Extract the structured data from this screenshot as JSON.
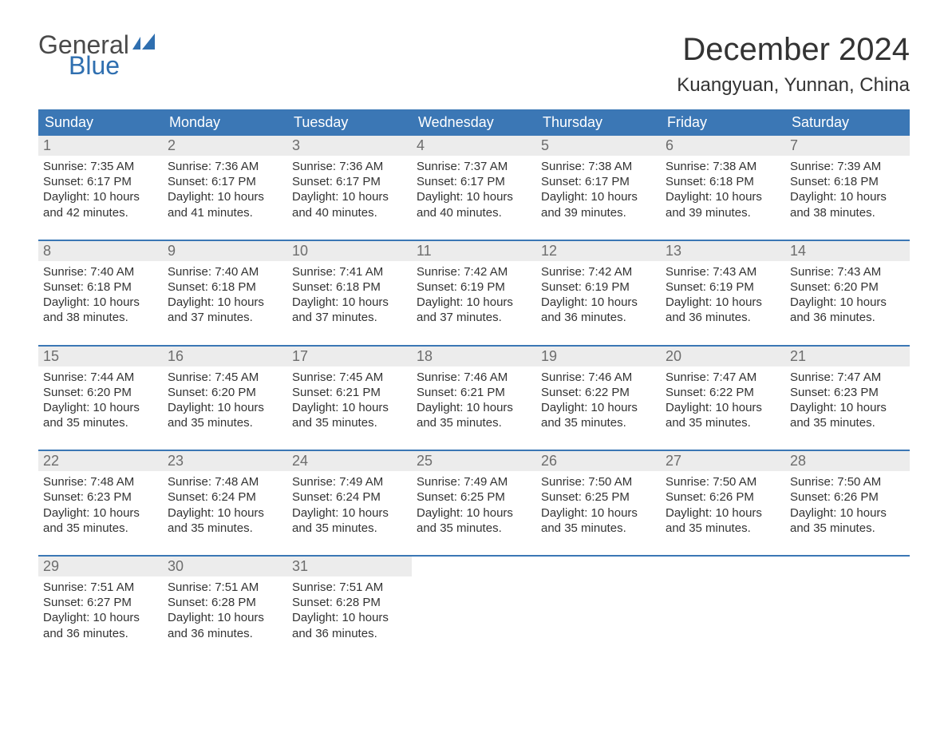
{
  "logo": {
    "text_top": "General",
    "text_bottom": "Blue",
    "top_color": "#4a4a4a",
    "bottom_color": "#2f6fb0",
    "flag_color": "#2f6fb0"
  },
  "title": "December 2024",
  "location": "Kuangyuan, Yunnan, China",
  "colors": {
    "header_bg": "#3b77b5",
    "header_text": "#ffffff",
    "daynum_bg": "#ececec",
    "daynum_text": "#6d6d6d",
    "body_text": "#333333",
    "divider": "#3b77b5",
    "page_bg": "#ffffff"
  },
  "fonts": {
    "title_pt": 40,
    "location_pt": 24,
    "weekday_pt": 18,
    "daynum_pt": 18,
    "body_pt": 15,
    "logo_pt": 32
  },
  "weekdays": [
    "Sunday",
    "Monday",
    "Tuesday",
    "Wednesday",
    "Thursday",
    "Friday",
    "Saturday"
  ],
  "weeks": [
    [
      {
        "n": "1",
        "sunrise": "7:35 AM",
        "sunset": "6:17 PM",
        "daylight": "10 hours and 42 minutes."
      },
      {
        "n": "2",
        "sunrise": "7:36 AM",
        "sunset": "6:17 PM",
        "daylight": "10 hours and 41 minutes."
      },
      {
        "n": "3",
        "sunrise": "7:36 AM",
        "sunset": "6:17 PM",
        "daylight": "10 hours and 40 minutes."
      },
      {
        "n": "4",
        "sunrise": "7:37 AM",
        "sunset": "6:17 PM",
        "daylight": "10 hours and 40 minutes."
      },
      {
        "n": "5",
        "sunrise": "7:38 AM",
        "sunset": "6:17 PM",
        "daylight": "10 hours and 39 minutes."
      },
      {
        "n": "6",
        "sunrise": "7:38 AM",
        "sunset": "6:18 PM",
        "daylight": "10 hours and 39 minutes."
      },
      {
        "n": "7",
        "sunrise": "7:39 AM",
        "sunset": "6:18 PM",
        "daylight": "10 hours and 38 minutes."
      }
    ],
    [
      {
        "n": "8",
        "sunrise": "7:40 AM",
        "sunset": "6:18 PM",
        "daylight": "10 hours and 38 minutes."
      },
      {
        "n": "9",
        "sunrise": "7:40 AM",
        "sunset": "6:18 PM",
        "daylight": "10 hours and 37 minutes."
      },
      {
        "n": "10",
        "sunrise": "7:41 AM",
        "sunset": "6:18 PM",
        "daylight": "10 hours and 37 minutes."
      },
      {
        "n": "11",
        "sunrise": "7:42 AM",
        "sunset": "6:19 PM",
        "daylight": "10 hours and 37 minutes."
      },
      {
        "n": "12",
        "sunrise": "7:42 AM",
        "sunset": "6:19 PM",
        "daylight": "10 hours and 36 minutes."
      },
      {
        "n": "13",
        "sunrise": "7:43 AM",
        "sunset": "6:19 PM",
        "daylight": "10 hours and 36 minutes."
      },
      {
        "n": "14",
        "sunrise": "7:43 AM",
        "sunset": "6:20 PM",
        "daylight": "10 hours and 36 minutes."
      }
    ],
    [
      {
        "n": "15",
        "sunrise": "7:44 AM",
        "sunset": "6:20 PM",
        "daylight": "10 hours and 35 minutes."
      },
      {
        "n": "16",
        "sunrise": "7:45 AM",
        "sunset": "6:20 PM",
        "daylight": "10 hours and 35 minutes."
      },
      {
        "n": "17",
        "sunrise": "7:45 AM",
        "sunset": "6:21 PM",
        "daylight": "10 hours and 35 minutes."
      },
      {
        "n": "18",
        "sunrise": "7:46 AM",
        "sunset": "6:21 PM",
        "daylight": "10 hours and 35 minutes."
      },
      {
        "n": "19",
        "sunrise": "7:46 AM",
        "sunset": "6:22 PM",
        "daylight": "10 hours and 35 minutes."
      },
      {
        "n": "20",
        "sunrise": "7:47 AM",
        "sunset": "6:22 PM",
        "daylight": "10 hours and 35 minutes."
      },
      {
        "n": "21",
        "sunrise": "7:47 AM",
        "sunset": "6:23 PM",
        "daylight": "10 hours and 35 minutes."
      }
    ],
    [
      {
        "n": "22",
        "sunrise": "7:48 AM",
        "sunset": "6:23 PM",
        "daylight": "10 hours and 35 minutes."
      },
      {
        "n": "23",
        "sunrise": "7:48 AM",
        "sunset": "6:24 PM",
        "daylight": "10 hours and 35 minutes."
      },
      {
        "n": "24",
        "sunrise": "7:49 AM",
        "sunset": "6:24 PM",
        "daylight": "10 hours and 35 minutes."
      },
      {
        "n": "25",
        "sunrise": "7:49 AM",
        "sunset": "6:25 PM",
        "daylight": "10 hours and 35 minutes."
      },
      {
        "n": "26",
        "sunrise": "7:50 AM",
        "sunset": "6:25 PM",
        "daylight": "10 hours and 35 minutes."
      },
      {
        "n": "27",
        "sunrise": "7:50 AM",
        "sunset": "6:26 PM",
        "daylight": "10 hours and 35 minutes."
      },
      {
        "n": "28",
        "sunrise": "7:50 AM",
        "sunset": "6:26 PM",
        "daylight": "10 hours and 35 minutes."
      }
    ],
    [
      {
        "n": "29",
        "sunrise": "7:51 AM",
        "sunset": "6:27 PM",
        "daylight": "10 hours and 36 minutes."
      },
      {
        "n": "30",
        "sunrise": "7:51 AM",
        "sunset": "6:28 PM",
        "daylight": "10 hours and 36 minutes."
      },
      {
        "n": "31",
        "sunrise": "7:51 AM",
        "sunset": "6:28 PM",
        "daylight": "10 hours and 36 minutes."
      },
      null,
      null,
      null,
      null
    ]
  ],
  "labels": {
    "sunrise": "Sunrise: ",
    "sunset": "Sunset: ",
    "daylight": "Daylight: "
  }
}
